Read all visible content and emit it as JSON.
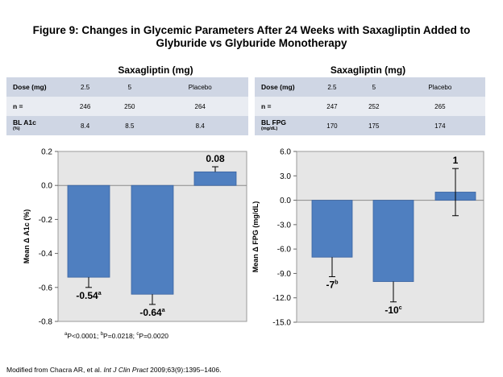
{
  "title_line1": "Figure 9: Changes in Glycemic Parameters After 24 Weeks with Saxagliptin Added to",
  "title_line2": "Glyburide vs Glyburide Monotherapy",
  "left_panel": {
    "header": "Saxagliptin (mg)",
    "rows": [
      {
        "label": "Dose (mg)",
        "unit": "",
        "cells": [
          "2.5",
          "5",
          "Placebo"
        ]
      },
      {
        "label": "n =",
        "unit": "",
        "cells": [
          "246",
          "250",
          "264"
        ]
      },
      {
        "label": "BL A1c",
        "unit": "(%)",
        "cells": [
          "8.4",
          "8.5",
          "8.4"
        ]
      }
    ]
  },
  "right_panel": {
    "header": "Saxagliptin (mg)",
    "rows": [
      {
        "label": "Dose (mg)",
        "unit": "",
        "cells": [
          "2.5",
          "5",
          "Placebo"
        ]
      },
      {
        "label": "n =",
        "unit": "",
        "cells": [
          "247",
          "252",
          "265"
        ]
      },
      {
        "label": "BL FPG",
        "unit": "(mg/dL)",
        "cells": [
          "170",
          "175",
          "174"
        ]
      }
    ]
  },
  "chart_data": [
    {
      "type": "bar",
      "categories": [
        "2.5",
        "5",
        "Placebo"
      ],
      "values": [
        -0.54,
        -0.64,
        0.08
      ],
      "error_bars": [
        0.06,
        0.06,
        0.03
      ],
      "data_labels": [
        {
          "text": "-0.54",
          "sup": "a"
        },
        {
          "text": "-0.64",
          "sup": "a"
        },
        {
          "text": "0.08",
          "sup": ""
        }
      ],
      "ylabel": "Mean Δ A1c (%)",
      "ylim": [
        -0.8,
        0.2
      ],
      "yticks": [
        "0.2",
        "0.0",
        "-0.2",
        "-0.4",
        "-0.6",
        "-0.8"
      ],
      "bar_color": "#4f7fc0",
      "plot_bg": "#e6e6e6"
    },
    {
      "type": "bar",
      "categories": [
        "2.5",
        "5",
        "Placebo"
      ],
      "values": [
        -7,
        -10,
        1
      ],
      "error_bars": [
        2.4,
        2.5,
        2.9
      ],
      "data_labels": [
        {
          "text": "-7",
          "sup": "b"
        },
        {
          "text": "-10",
          "sup": "c"
        },
        {
          "text": "1",
          "sup": ""
        }
      ],
      "ylabel": "Mean Δ FPG (mg/dL)",
      "ylim": [
        -15,
        6
      ],
      "yticks": [
        "6.0",
        "3.0",
        "0.0",
        "-3.0",
        "-6.0",
        "-9.0",
        "-12.0",
        "-15.0"
      ],
      "bar_color": "#4f7fc0",
      "plot_bg": "#e6e6e6"
    }
  ],
  "footnote": {
    "a": "a",
    "t1": "P<0.0001; ",
    "b": "b",
    "t2": "P=0.0218; ",
    "c": "c",
    "t3": "P=0.0020"
  },
  "source": {
    "prefix": "Modified from Chacra AR, et al.  ",
    "journal": "Int J Clin Pract",
    "suffix": " 2009;63(9):1395–1406."
  }
}
